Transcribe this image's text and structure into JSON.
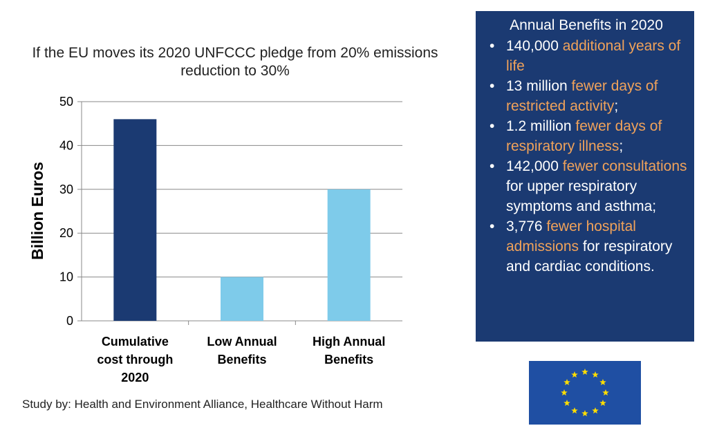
{
  "chart_data": {
    "type": "bar",
    "title": "If the EU moves its 2020 UNFCCC pledge from 20% emissions reduction to 30%",
    "ylabel": "Billion Euros",
    "ylim": [
      0,
      50
    ],
    "yticks": [
      "0",
      "10",
      "20",
      "30",
      "40",
      "50"
    ],
    "grid": true,
    "categories": [
      [
        "Cumulative",
        "cost through",
        "2020"
      ],
      [
        "Low Annual",
        "Benefits"
      ],
      [
        "High Annual",
        "Benefits"
      ]
    ],
    "values": [
      46,
      10,
      30
    ],
    "colors": [
      "#1b3a72",
      "#7ecbea",
      "#7ecbea"
    ]
  },
  "source_note": "Study by: Health and Environment Alliance, Healthcare Without Harm",
  "panel": {
    "title": "Annual Benefits in 2020",
    "bullet": "•",
    "items": [
      [
        {
          "t": "140,000 ",
          "h": false
        },
        {
          "t": "additional years of life",
          "h": true
        }
      ],
      [
        {
          "t": "13 million ",
          "h": false
        },
        {
          "t": "fewer days of restricted activity",
          "h": true
        },
        {
          "t": ";",
          "h": false
        }
      ],
      [
        {
          "t": "1.2 million ",
          "h": false
        },
        {
          "t": "fewer days of respiratory illness",
          "h": true
        },
        {
          "t": ";",
          "h": false
        }
      ],
      [
        {
          "t": "142,000 ",
          "h": false
        },
        {
          "t": "fewer consultations",
          "h": true
        },
        {
          "t": " for upper respiratory symptoms and asthma;",
          "h": false
        }
      ],
      [
        {
          "t": " 3,776 ",
          "h": false
        },
        {
          "t": "fewer hospital admissions",
          "h": true
        },
        {
          "t": " for respiratory and cardiac conditions.",
          "h": false
        }
      ]
    ],
    "colors": {
      "background": "#1b3a72",
      "text": "#ffffff",
      "highlight": "#f0a25a"
    }
  },
  "flag": {
    "icon": "eu-flag-icon",
    "background": "#1f4fa3",
    "star_color": "#ffdd00",
    "star_count": 12
  }
}
